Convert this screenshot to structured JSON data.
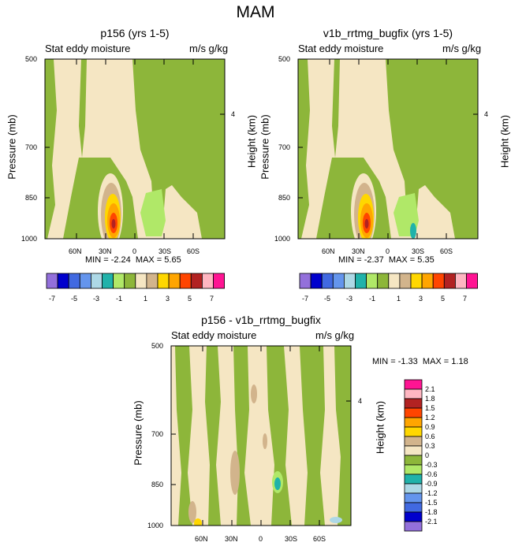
{
  "figure": {
    "title": "MAM",
    "field_label": "Stat eddy moisture",
    "units": "m/s g/kg",
    "y_label": "Pressure (mb)",
    "y2_label": "Height (km)",
    "height_tick": "4",
    "min_prefix": "MIN = ",
    "max_prefix": "MAX = "
  },
  "chart_data": [
    {
      "type": "contour",
      "title": "p156 (yrs 1-5)",
      "min": "-2.24",
      "max": "5.65",
      "x_tick_labels": [
        "60N",
        "30N",
        "0",
        "30S",
        "60S"
      ],
      "y_tick_labels": [
        "500",
        "700",
        "850",
        "1000"
      ],
      "ylim": [
        1000,
        500
      ],
      "levels": [
        -7,
        -6,
        -5,
        -4,
        -3,
        -2,
        -1,
        0,
        1,
        2,
        3,
        4,
        5,
        6,
        7
      ],
      "colorbar_labels": [
        "-7",
        "-5",
        "-3",
        "-1",
        "1",
        "3",
        "5",
        "7"
      ]
    },
    {
      "type": "contour",
      "title": "v1b_rrtmg_bugfix (yrs 1-5)",
      "min": "-2.37",
      "max": "5.35",
      "x_tick_labels": [
        "60N",
        "30N",
        "0",
        "30S",
        "60S"
      ],
      "y_tick_labels": [
        "500",
        "700",
        "850",
        "1000"
      ],
      "ylim": [
        1000,
        500
      ],
      "levels": [
        -7,
        -6,
        -5,
        -4,
        -3,
        -2,
        -1,
        0,
        1,
        2,
        3,
        4,
        5,
        6,
        7
      ],
      "colorbar_labels": [
        "-7",
        "-5",
        "-3",
        "-1",
        "1",
        "3",
        "5",
        "7"
      ]
    },
    {
      "type": "contour",
      "title": "p156 - v1b_rrtmg_bugfix",
      "min": "-1.33",
      "max": "1.18",
      "x_tick_labels": [
        "60N",
        "30N",
        "0",
        "30S",
        "60S"
      ],
      "y_tick_labels": [
        "500",
        "700",
        "850",
        "1000"
      ],
      "ylim": [
        1000,
        500
      ],
      "levels": [
        -2.1,
        -1.8,
        -1.5,
        -1.2,
        -0.9,
        -0.6,
        -0.3,
        0,
        0.3,
        0.6,
        0.9,
        1.2,
        1.5,
        1.8,
        2.1
      ],
      "colorbar_labels": [
        "2.1",
        "1.8",
        "1.5",
        "1.2",
        "0.9",
        "0.6",
        "0.3",
        "0",
        "-0.3",
        "-0.6",
        "-0.9",
        "-1.2",
        "-1.5",
        "-1.8",
        "-2.1"
      ]
    }
  ],
  "colors": {
    "palette": [
      "#9370db",
      "#0000cd",
      "#4169e1",
      "#6495ed",
      "#add8e6",
      "#20b2aa",
      "#b0e868",
      "#8db63a",
      "#f5e6c3",
      "#d2b48c",
      "#ffd700",
      "#ffa500",
      "#ff4500",
      "#b22222",
      "#ffb6c1",
      "#ff1493"
    ],
    "diff_palette": [
      "#ff1493",
      "#ffb6c1",
      "#b22222",
      "#ff4500",
      "#ffa500",
      "#ffd700",
      "#d2b48c",
      "#f5e6c3",
      "#8db63a",
      "#b0e868",
      "#20b2aa",
      "#add8e6",
      "#6495ed",
      "#4169e1",
      "#0000cd",
      "#9370db"
    ]
  }
}
